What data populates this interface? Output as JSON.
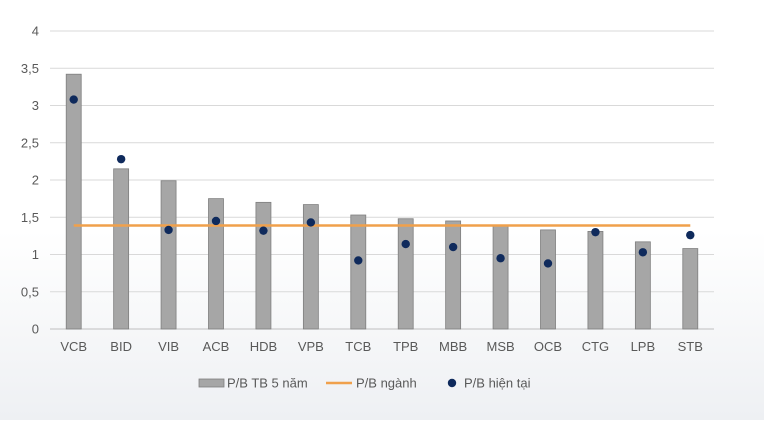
{
  "chart_data": {
    "type": "bar",
    "categories": [
      "VCB",
      "BID",
      "VIB",
      "ACB",
      "HDB",
      "VPB",
      "TCB",
      "TPB",
      "MBB",
      "MSB",
      "OCB",
      "CTG",
      "LPB",
      "STB"
    ],
    "series": [
      {
        "name": "P/B TB 5 năm",
        "kind": "bar",
        "color": "#a6a6a6",
        "values": [
          3.42,
          2.15,
          1.99,
          1.75,
          1.7,
          1.67,
          1.53,
          1.48,
          1.45,
          1.39,
          1.33,
          1.31,
          1.17,
          1.08
        ]
      },
      {
        "name": "P/B ngành",
        "kind": "line",
        "color": "#f0a04b",
        "values": [
          1.39,
          1.39,
          1.39,
          1.39,
          1.39,
          1.39,
          1.39,
          1.39,
          1.39,
          1.39,
          1.39,
          1.39,
          1.39,
          1.39
        ]
      },
      {
        "name": "P/B hiện tại",
        "kind": "scatter",
        "color": "#0f2a5c",
        "values": [
          3.08,
          2.28,
          1.33,
          1.45,
          1.32,
          1.43,
          0.92,
          1.14,
          1.1,
          0.95,
          0.88,
          1.3,
          1.03,
          1.26
        ]
      }
    ],
    "ylim": [
      0,
      4
    ],
    "yticks": [
      0,
      0.5,
      1,
      1.5,
      2,
      2.5,
      3,
      3.5,
      4
    ],
    "ytick_labels": [
      "0",
      "0,5",
      "1",
      "1,5",
      "2",
      "2,5",
      "3",
      "3,5",
      "4"
    ],
    "grid": true,
    "legend_position": "bottom",
    "title": "",
    "xlabel": "",
    "ylabel": ""
  }
}
